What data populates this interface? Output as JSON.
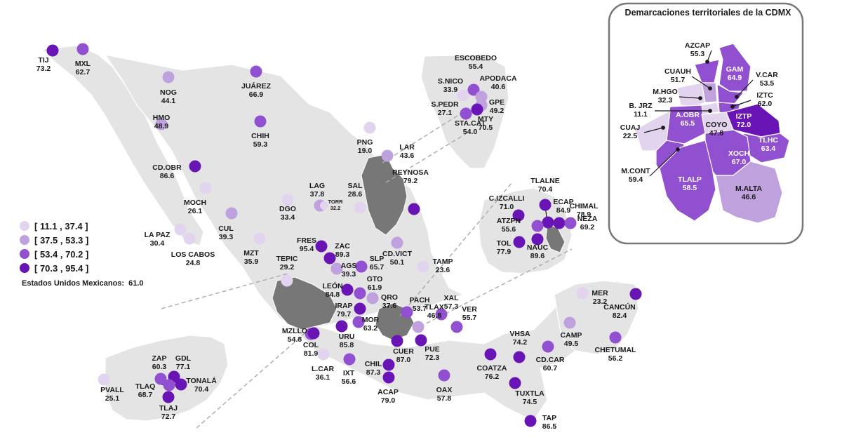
{
  "inset_title": "Demarcaciones territoriales de la CDMX",
  "legend": [
    {
      "range": "[ 11.1 , 37.4 ]",
      "color": "#e2d3ef"
    },
    {
      "range": "[ 37.5 , 53.3 ]",
      "color": "#bfa1de"
    },
    {
      "range": "[ 53.4 , 70.2 ]",
      "color": "#9150cf"
    },
    {
      "range": "[ 70.3 , 95.4 ]",
      "color": "#6915b6"
    }
  ],
  "national": {
    "label": "Estados Unidos Mexicanos:",
    "value": "61.0"
  },
  "cities": [
    {
      "code": "TIJ",
      "value": "73.2"
    },
    {
      "code": "MXL",
      "value": "62.7"
    },
    {
      "code": "NOG",
      "value": "44.1"
    },
    {
      "code": "HMO",
      "value": "48.9"
    },
    {
      "code": "JUÁREZ",
      "value": "66.9"
    },
    {
      "code": "CHIH",
      "value": "59.3"
    },
    {
      "code": "CD.OBR",
      "value": "86.6"
    },
    {
      "code": "MOCH",
      "value": "26.1"
    },
    {
      "code": "LA PAZ",
      "value": "30.4"
    },
    {
      "code": "LOS CABOS",
      "value": "24.8"
    },
    {
      "code": "CUL",
      "value": "39.3"
    },
    {
      "code": "MZT",
      "value": "35.9"
    },
    {
      "code": "DGO",
      "value": "33.4"
    },
    {
      "code": "LAG",
      "value": "37.8"
    },
    {
      "code": "TORR",
      "value": "32.2"
    },
    {
      "code": "SAL",
      "value": "28.6"
    },
    {
      "code": "PNG",
      "value": "19.0"
    },
    {
      "code": "LAR",
      "value": "43.6"
    },
    {
      "code": "REYNOSA",
      "value": "79.2"
    },
    {
      "code": "ESCOBEDO",
      "value": "55.4"
    },
    {
      "code": "S.NICO",
      "value": "33.9"
    },
    {
      "code": "APODACA",
      "value": "40.6"
    },
    {
      "code": "S.PEDR",
      "value": "27.1"
    },
    {
      "code": "GPE",
      "value": "49.2"
    },
    {
      "code": "STA.CAT",
      "value": "54.0"
    },
    {
      "code": "MTY",
      "value": "70.5"
    },
    {
      "code": "TEPIC",
      "value": "29.2"
    },
    {
      "code": "FRES",
      "value": "95.4"
    },
    {
      "code": "ZAC",
      "value": "89.3"
    },
    {
      "code": "AGS",
      "value": "39.3"
    },
    {
      "code": "SLP",
      "value": "65.7"
    },
    {
      "code": "CD.VICT",
      "value": "50.1"
    },
    {
      "code": "TAMP",
      "value": "23.6"
    },
    {
      "code": "LEÓN",
      "value": "84.8"
    },
    {
      "code": "GTO",
      "value": "61.9"
    },
    {
      "code": "IRAP",
      "value": "79.7"
    },
    {
      "code": "QRO",
      "value": "37.6"
    },
    {
      "code": "PACH",
      "value": "53.7"
    },
    {
      "code": "XAL",
      "value": "57.3"
    },
    {
      "code": "MOR",
      "value": "63.2"
    },
    {
      "code": "URU",
      "value": "85.8"
    },
    {
      "code": "MZLLO",
      "value": "54.8"
    },
    {
      "code": "COL",
      "value": "81.9"
    },
    {
      "code": "TLAX",
      "value": "46.8"
    },
    {
      "code": "VER",
      "value": "55.7"
    },
    {
      "code": "CUER",
      "value": "87.0"
    },
    {
      "code": "PUE",
      "value": "72.3"
    },
    {
      "code": "L.CAR",
      "value": "36.1"
    },
    {
      "code": "IXT",
      "value": "56.6"
    },
    {
      "code": "CHIL",
      "value": "87.3"
    },
    {
      "code": "ACAP",
      "value": "79.0"
    },
    {
      "code": "OAX",
      "value": "57.8"
    },
    {
      "code": "COATZA",
      "value": "76.2"
    },
    {
      "code": "VHSA",
      "value": "74.2"
    },
    {
      "code": "CD.CAR",
      "value": "60.7"
    },
    {
      "code": "CAMP",
      "value": "49.5"
    },
    {
      "code": "MER",
      "value": "23.2"
    },
    {
      "code": "CANCÚN",
      "value": "82.4"
    },
    {
      "code": "CHETUMAL",
      "value": "56.2"
    },
    {
      "code": "TUXTLA",
      "value": "74.5"
    },
    {
      "code": "TAP",
      "value": "86.5"
    },
    {
      "code": "ZAP",
      "value": "60.3"
    },
    {
      "code": "GDL",
      "value": "77.1"
    },
    {
      "code": "TONALÁ",
      "value": "70.4"
    },
    {
      "code": "PVALL",
      "value": "25.1"
    },
    {
      "code": "TLAQ",
      "value": "68.7"
    },
    {
      "code": "TLAJ",
      "value": "72.7"
    },
    {
      "code": "TLALNE",
      "value": "70.4"
    },
    {
      "code": "C.IZCALLI",
      "value": "71.0"
    },
    {
      "code": "ECAP",
      "value": "84.9"
    },
    {
      "code": "CHIMAL",
      "value": "78.9"
    },
    {
      "code": "ATZPN",
      "value": "55.6"
    },
    {
      "code": "NEZA",
      "value": "69.2"
    },
    {
      "code": "TOL",
      "value": "77.9"
    },
    {
      "code": "NAUC",
      "value": "89.6"
    }
  ],
  "cdmx": [
    {
      "code": "AZCAP",
      "value": "55.3"
    },
    {
      "code": "GAM",
      "value": "64.9"
    },
    {
      "code": "CUAUH",
      "value": "51.7"
    },
    {
      "code": "V.CAR",
      "value": "53.5"
    },
    {
      "code": "M.HGO",
      "value": "32.3"
    },
    {
      "code": "IZTC",
      "value": "62.0"
    },
    {
      "code": "B. JRZ",
      "value": "11.1"
    },
    {
      "code": "IZTP",
      "value": "72.0"
    },
    {
      "code": "A.OBR",
      "value": "65.5"
    },
    {
      "code": "COYO",
      "value": "47.8"
    },
    {
      "code": "CUAJ",
      "value": "22.5"
    },
    {
      "code": "TLHC",
      "value": "63.4"
    },
    {
      "code": "XOCH",
      "value": "67.0"
    },
    {
      "code": "M.CONT",
      "value": "59.4"
    },
    {
      "code": "TLALP",
      "value": "58.5"
    },
    {
      "code": "M.ALTA",
      "value": "46.6"
    }
  ]
}
